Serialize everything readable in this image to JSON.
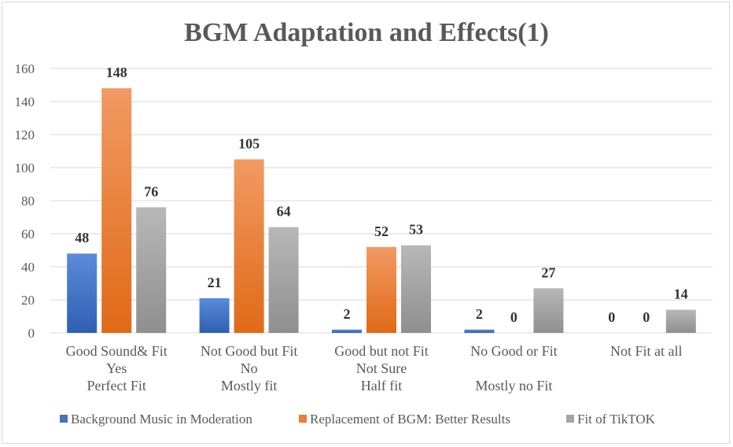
{
  "chart_data": {
    "type": "bar",
    "title": "BGM Adaptation and Effects(1)",
    "ylim": [
      0,
      160
    ],
    "yticks": [
      0,
      20,
      40,
      60,
      80,
      100,
      120,
      140,
      160
    ],
    "grid": true,
    "legend_position": "bottom",
    "categories": [
      [
        "Good Sound& Fit",
        "Yes",
        "Perfect Fit"
      ],
      [
        "Not Good but Fit",
        "No",
        "Mostly fit"
      ],
      [
        "Good but not Fit",
        "Not Sure",
        "Half fit"
      ],
      [
        "No Good or Fit",
        "",
        "Mostly no Fit"
      ],
      [
        "Not Fit at all",
        "",
        ""
      ]
    ],
    "series": [
      {
        "name": "Background Music in Moderation",
        "color": "#4472c4",
        "values": [
          48,
          21,
          2,
          2,
          0
        ]
      },
      {
        "name": "Replacement of BGM: Better Results",
        "color": "#ed7d31",
        "values": [
          148,
          105,
          52,
          0,
          0
        ]
      },
      {
        "name": "Fit of TikTOK",
        "color": "#a5a5a5",
        "values": [
          76,
          64,
          53,
          27,
          14
        ]
      }
    ]
  }
}
